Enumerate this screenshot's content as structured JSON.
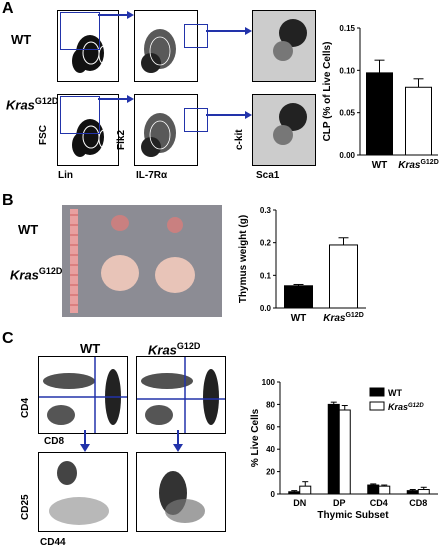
{
  "panels": {
    "a": "A",
    "b": "B",
    "c": "C"
  },
  "panel_a": {
    "row_wt": "WT",
    "row_kras_base": "Kras",
    "row_kras_sup": "G12D",
    "axis_fsc": "FSC",
    "axis_lin": "Lin",
    "axis_flk2": "Flk2",
    "axis_il7": "IL-7Rα",
    "axis_ckit": "c-kit",
    "axis_sca1": "Sca1"
  },
  "panel_b": {
    "row_wt": "WT",
    "row_kras_base": "Kras",
    "row_kras_sup": "G12D"
  },
  "panel_c": {
    "col_wt": "WT",
    "col_kras_base": "Kras",
    "col_kras_sup": "G12D",
    "axis_cd4": "CD4",
    "axis_cd8": "CD8",
    "axis_cd25": "CD25",
    "axis_cd44": "CD44"
  },
  "chart_data": [
    {
      "type": "bar",
      "ylabel": "CLP (% of Live Cells)",
      "categories": [
        "WT",
        "KrasG12D"
      ],
      "cat_base": [
        "WT",
        "Kras"
      ],
      "cat_sup": [
        "",
        "G12D"
      ],
      "values": [
        0.097,
        0.08
      ],
      "errors": [
        0.015,
        0.01
      ],
      "colors": [
        "#000000",
        "#ffffff"
      ],
      "ylim": [
        0,
        0.15
      ],
      "yticks": [
        "0.00",
        "0.05",
        "0.10",
        "0.15"
      ]
    },
    {
      "type": "bar",
      "ylabel": "Thymus weight (g)",
      "categories": [
        "WT",
        "KrasG12D"
      ],
      "cat_base": [
        "WT",
        "Kras"
      ],
      "cat_sup": [
        "",
        "G12D"
      ],
      "values": [
        0.068,
        0.193
      ],
      "errors": [
        0.004,
        0.022
      ],
      "colors": [
        "#000000",
        "#ffffff"
      ],
      "ylim": [
        0,
        0.3
      ],
      "yticks": [
        "0.0",
        "0.1",
        "0.2",
        "0.3"
      ]
    },
    {
      "type": "bar",
      "ylabel": "% Live Cells",
      "xlabel": "Thymic Subset",
      "categories": [
        "DN",
        "DP",
        "CD4",
        "CD8"
      ],
      "series": [
        {
          "name": "WT",
          "values": [
            2,
            80,
            8,
            3
          ],
          "errors": [
            1,
            2,
            1,
            1
          ],
          "color": "#000000"
        },
        {
          "name": "KrasG12D",
          "name_base": "Kras",
          "name_sup": "G12D",
          "values": [
            7,
            75,
            7,
            4
          ],
          "errors": [
            4,
            4,
            1,
            2
          ],
          "color": "#ffffff"
        }
      ],
      "ylim": [
        0,
        100
      ],
      "yticks": [
        "0",
        "20",
        "40",
        "60",
        "80",
        "100"
      ],
      "legend": "top-right"
    }
  ]
}
